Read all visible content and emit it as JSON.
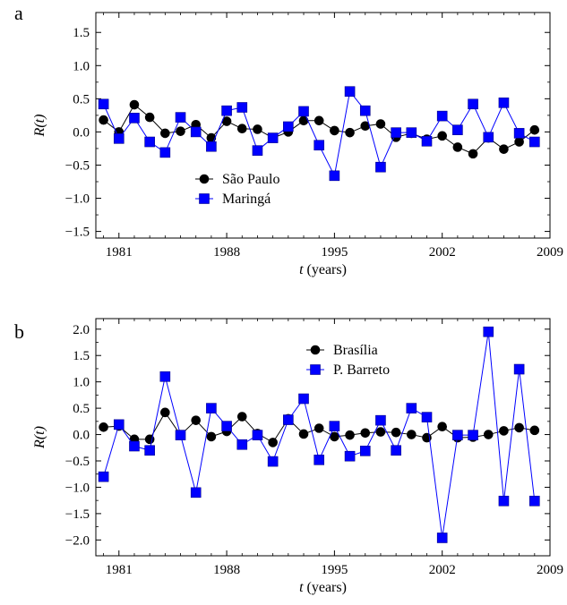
{
  "chart_data": [
    {
      "panel_label": "a",
      "type": "line",
      "xlabel": "t (years)",
      "xlabel_var": "t",
      "xlabel_unit": " (years)",
      "ylabel": "R(t)",
      "ylabel_var": "R",
      "ylabel_arg": "(t)",
      "xlim": [
        1979.5,
        2009
      ],
      "ylim": [
        -1.6,
        1.8
      ],
      "x_ticks": [
        1981,
        1988,
        1995,
        2002,
        2009
      ],
      "x_tick_labels": [
        "1981",
        "1988",
        "1995",
        "2002",
        "2009"
      ],
      "y_ticks": [
        -1.5,
        -1.0,
        -0.5,
        0.0,
        0.5,
        1.0,
        1.5
      ],
      "y_tick_labels": [
        "−1.5",
        "−1.0",
        "−0.5",
        "0.0",
        "0.5",
        "1.0",
        "1.5"
      ],
      "grid": false,
      "legend_position": "center",
      "x": [
        1980,
        1981,
        1982,
        1983,
        1984,
        1985,
        1986,
        1987,
        1988,
        1989,
        1990,
        1991,
        1992,
        1993,
        1994,
        1995,
        1996,
        1997,
        1998,
        1999,
        2000,
        2001,
        2002,
        2003,
        2004,
        2005,
        2006,
        2007,
        2008
      ],
      "series": [
        {
          "name": "São Paulo",
          "marker": "circle",
          "color": "#000000",
          "values": [
            0.18,
            0.0,
            0.41,
            0.22,
            -0.02,
            0.01,
            0.11,
            -0.09,
            0.16,
            0.05,
            0.04,
            -0.09,
            0.0,
            0.17,
            0.17,
            0.02,
            -0.01,
            0.09,
            0.12,
            -0.08,
            -0.02,
            -0.11,
            -0.06,
            -0.23,
            -0.33,
            -0.09,
            -0.26,
            -0.15,
            0.03
          ]
        },
        {
          "name": "Maringá",
          "marker": "square",
          "color": "#0000ff",
          "values": [
            0.42,
            -0.1,
            0.21,
            -0.15,
            -0.31,
            0.22,
            0.0,
            -0.22,
            0.32,
            0.37,
            -0.28,
            -0.09,
            0.08,
            0.31,
            -0.2,
            -0.66,
            0.61,
            0.32,
            -0.53,
            -0.01,
            -0.01,
            -0.14,
            0.24,
            0.03,
            0.42,
            -0.08,
            0.44,
            -0.02,
            -0.15
          ]
        }
      ]
    },
    {
      "panel_label": "b",
      "type": "line",
      "xlabel": "t (years)",
      "xlabel_var": "t",
      "xlabel_unit": " (years)",
      "ylabel": "R(t)",
      "ylabel_var": "R",
      "ylabel_arg": "(t)",
      "xlim": [
        1979.5,
        2009
      ],
      "ylim": [
        -2.3,
        2.2
      ],
      "x_ticks": [
        1981,
        1988,
        1995,
        2002,
        2009
      ],
      "x_tick_labels": [
        "1981",
        "1988",
        "1995",
        "2002",
        "2009"
      ],
      "y_ticks": [
        -2.0,
        -1.5,
        -1.0,
        -0.5,
        0.0,
        0.5,
        1.0,
        1.5,
        2.0
      ],
      "y_tick_labels": [
        "−2.0",
        "−1.5",
        "−1.0",
        "−0.5",
        "0.0",
        "0.5",
        "1.0",
        "1.5",
        "2.0"
      ],
      "grid": false,
      "legend_position": "top-center",
      "x": [
        1980,
        1981,
        1982,
        1983,
        1984,
        1985,
        1986,
        1987,
        1988,
        1989,
        1990,
        1991,
        1992,
        1993,
        1994,
        1995,
        1996,
        1997,
        1998,
        1999,
        2000,
        2001,
        2002,
        2003,
        2004,
        2005,
        2006,
        2007,
        2008
      ],
      "series": [
        {
          "name": "Brasília",
          "marker": "circle",
          "color": "#000000",
          "values": [
            0.14,
            0.16,
            -0.09,
            -0.09,
            0.42,
            -0.01,
            0.27,
            -0.04,
            0.06,
            0.34,
            0.02,
            -0.15,
            0.3,
            0.01,
            0.12,
            -0.04,
            -0.01,
            0.03,
            0.05,
            0.04,
            0.0,
            -0.06,
            0.15,
            -0.06,
            -0.05,
            0.0,
            0.07,
            0.13,
            0.08
          ]
        },
        {
          "name": "P. Barreto",
          "marker": "square",
          "color": "#0000ff",
          "values": [
            -0.8,
            0.19,
            -0.22,
            -0.3,
            1.1,
            -0.01,
            -1.1,
            0.5,
            0.16,
            -0.19,
            -0.01,
            -0.51,
            0.28,
            0.68,
            -0.48,
            0.16,
            -0.41,
            -0.31,
            0.27,
            -0.3,
            0.5,
            0.33,
            -1.96,
            -0.01,
            -0.01,
            1.95,
            -1.26,
            1.24,
            -1.26
          ]
        }
      ]
    }
  ]
}
